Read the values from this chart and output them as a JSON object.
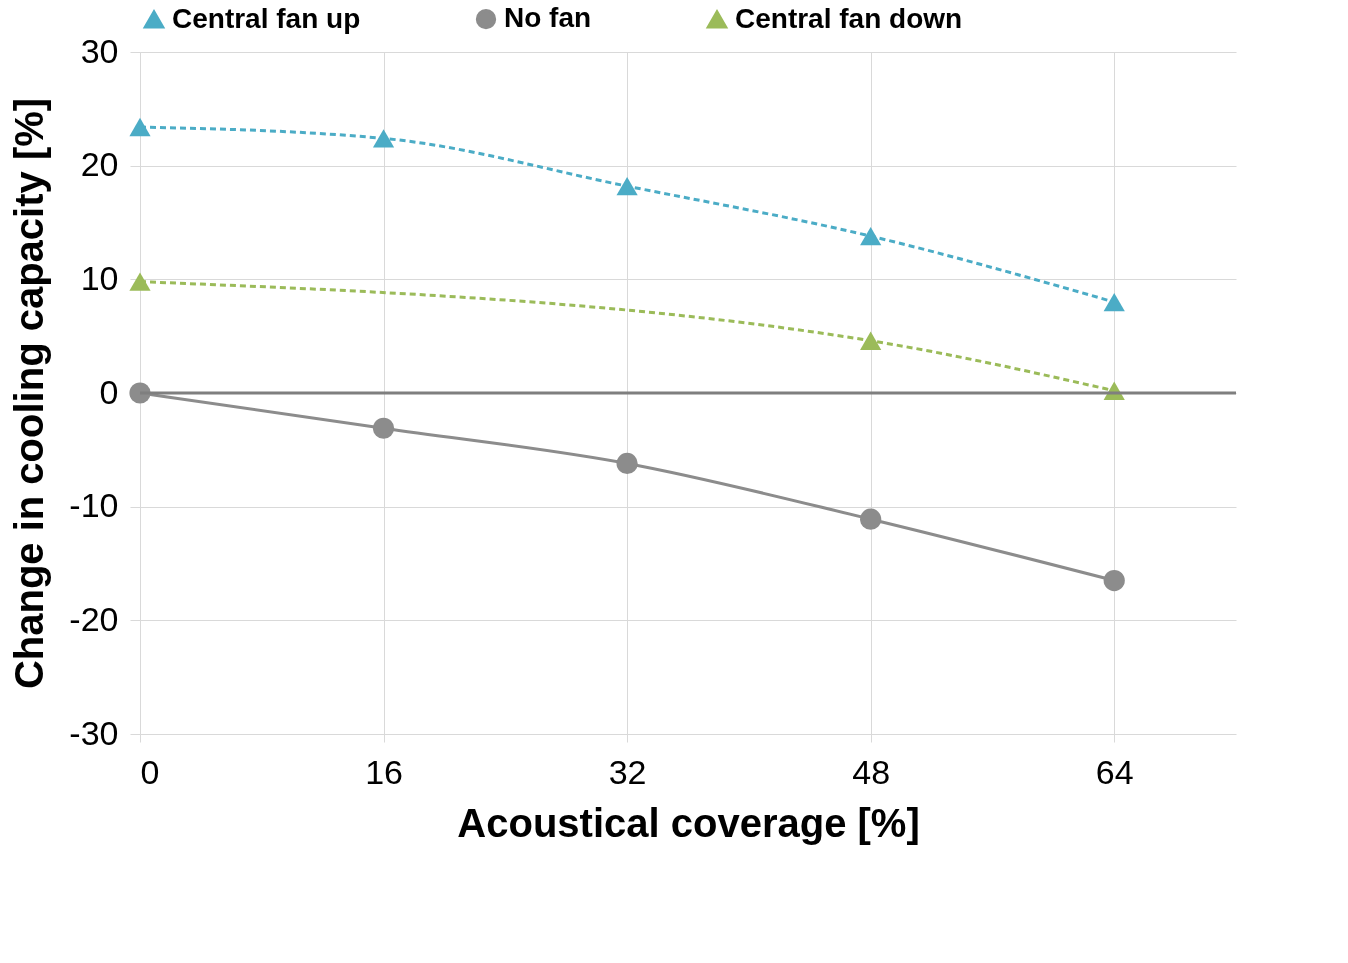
{
  "chart_data": {
    "type": "line",
    "xlabel": "Acoustical coverage [%]",
    "ylabel": "Change in cooling capacity [%]",
    "x": [
      0,
      16,
      32,
      48,
      64
    ],
    "series": [
      {
        "name": "Central fan up",
        "color": "#4bacc6",
        "values": [
          23.4,
          22.4,
          18.2,
          13.8,
          8.0
        ],
        "marker": "triangle",
        "line_style": "dashed"
      },
      {
        "name": "No fan",
        "color": "#8c8c8c",
        "values": [
          0,
          -3.1,
          -6.2,
          -11.1,
          -16.5
        ],
        "marker": "circle",
        "line_style": "solid"
      },
      {
        "name": "Central fan down",
        "color": "#9bbb59",
        "x": [
          0,
          48,
          64
        ],
        "values": [
          9.8,
          4.6,
          0.2
        ],
        "marker": "triangle",
        "line_style": "dashed"
      }
    ],
    "xlim": [
      0,
      72
    ],
    "xticks": [
      0,
      16,
      32,
      48,
      64
    ],
    "ylim": [
      -30,
      30
    ],
    "yticks": [
      -30,
      -20,
      -10,
      0,
      10,
      20,
      30
    ],
    "ref_lines": [
      {
        "axis": "y",
        "value": 0,
        "color": "#7f7f7f"
      }
    ],
    "grid": true,
    "legend": "top"
  }
}
